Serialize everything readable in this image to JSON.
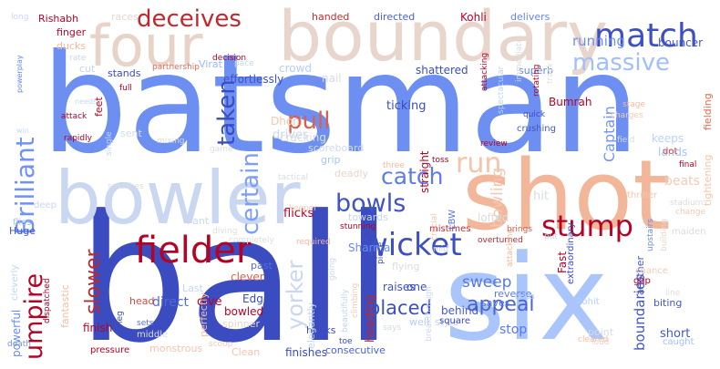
{
  "words": [
    {
      "text": "batsman",
      "color": "#6c8ff1"
    },
    {
      "text": "ball",
      "color": "#3b4cc0"
    },
    {
      "text": "six",
      "color": "#a9c5fc"
    },
    {
      "text": "shot",
      "color": "#f2b79a"
    },
    {
      "text": "bowler",
      "color": "#c9d7f0"
    },
    {
      "text": "boundary",
      "color": "#e8d6cc"
    },
    {
      "text": "four",
      "color": "#e7d3c8"
    },
    {
      "text": "fielder",
      "color": "#b40426"
    },
    {
      "text": "match",
      "color": "#3d50c3"
    },
    {
      "text": "wicket",
      "color": "#3d50c3"
    },
    {
      "text": "stump",
      "color": "#b40426"
    },
    {
      "text": "umpire",
      "color": "#b40426"
    },
    {
      "text": "Brilliant",
      "color": "#6f92f3"
    },
    {
      "text": "deceives",
      "color": "#c0282f"
    },
    {
      "text": "massive",
      "color": "#9fbfff"
    },
    {
      "text": "catch",
      "color": "#5d7ce6"
    },
    {
      "text": "run",
      "color": "#f5c4ac"
    },
    {
      "text": "bowls",
      "color": "#3f53c6"
    },
    {
      "text": "pull",
      "color": "#dd5f4b"
    },
    {
      "text": "certain",
      "color": "#7b9ff9"
    },
    {
      "text": "taken",
      "color": "#3b4cc0"
    },
    {
      "text": "yorker",
      "color": "#c9d7f0"
    },
    {
      "text": "slower",
      "color": "#c0282f"
    },
    {
      "text": "appeal",
      "color": "#4a63d3"
    },
    {
      "text": "placed",
      "color": "#3d50c3"
    },
    {
      "text": "running",
      "color": "#6e90f2"
    },
    {
      "text": "Captain",
      "color": "#7396f5"
    },
    {
      "text": "bouncer",
      "color": "#4358cb"
    },
    {
      "text": "stop",
      "color": "#5a78e4"
    },
    {
      "text": "bowling",
      "color": "#f4c6af"
    },
    {
      "text": "sweep",
      "color": "#5977e3"
    },
    {
      "text": "direct",
      "color": "#4f69d9"
    },
    {
      "text": "finish",
      "color": "#b40426"
    },
    {
      "text": "short",
      "color": "#4358cb"
    },
    {
      "text": "dive",
      "color": "#b40426"
    },
    {
      "text": "flicks",
      "color": "#b40426"
    },
    {
      "text": "hit",
      "color": "#d6dce4"
    },
    {
      "text": "beats",
      "color": "#f2cbb7"
    },
    {
      "text": "ticking",
      "color": "#3b4cc0"
    },
    {
      "text": "Bumrah",
      "color": "#b40426"
    },
    {
      "text": "keeps",
      "color": "#bcd2f7"
    },
    {
      "text": "lands",
      "color": "#a3c2fe"
    },
    {
      "text": "lofted",
      "color": "#dadce0"
    },
    {
      "text": "Fast",
      "color": "#b40426"
    },
    {
      "text": "drives",
      "color": "#c7d7f0"
    },
    {
      "text": "Dhoni",
      "color": "#f3c7b1"
    },
    {
      "text": "cracking",
      "color": "#dbdcde"
    },
    {
      "text": "scoreboard",
      "color": "#cfdaea"
    },
    {
      "text": "grip",
      "color": "#a5c3fe"
    },
    {
      "text": "deadly",
      "color": "#e9d5cb"
    },
    {
      "text": "sent",
      "color": "#d6dce4"
    },
    {
      "text": "head",
      "color": "#d24b40"
    },
    {
      "text": "effortlessly",
      "color": "#3e51c5"
    },
    {
      "text": "shattered",
      "color": "#3b4cc0"
    },
    {
      "text": "superb",
      "color": "#6384eb"
    },
    {
      "text": "crowd",
      "color": "#b3cdfb"
    },
    {
      "text": "nail",
      "color": "#d4dbe6"
    },
    {
      "text": "stands",
      "color": "#3b4cc0"
    },
    {
      "text": "cut",
      "color": "#c3d5f4"
    },
    {
      "text": "ducks",
      "color": "#f7b89c"
    },
    {
      "text": "finger",
      "color": "#b40426"
    },
    {
      "text": "Virat",
      "color": "#9abbff"
    },
    {
      "text": "Kohli",
      "color": "#b40426"
    },
    {
      "text": "directed",
      "color": "#4a63d3"
    },
    {
      "text": "delivers",
      "color": "#6687ed"
    },
    {
      "text": "handed",
      "color": "#c32e31"
    },
    {
      "text": "races",
      "color": "#e7d7ce"
    },
    {
      "text": "Rishabh",
      "color": "#b40426"
    },
    {
      "text": "long",
      "color": "#c7d7f0"
    },
    {
      "text": "towards",
      "color": "#c6d6f1"
    },
    {
      "text": "Sharma",
      "color": "#6a8bef"
    },
    {
      "text": "flying",
      "color": "#dcdddd"
    },
    {
      "text": "raises",
      "color": "#3e51c5"
    },
    {
      "text": "Rohit",
      "color": "#b3cdfb"
    },
    {
      "text": "reverse",
      "color": "#5b7ae5"
    },
    {
      "text": "saves",
      "color": "#5a78e4"
    },
    {
      "text": "biting",
      "color": "#4358cb"
    },
    {
      "text": "behind",
      "color": "#4358cb"
    },
    {
      "text": "consecutive",
      "color": "#4b64d5"
    },
    {
      "text": "finishes",
      "color": "#3b4cc0"
    },
    {
      "text": "well",
      "color": "#b3cdfb"
    },
    {
      "text": "style",
      "color": "#bfd3f6"
    },
    {
      "text": "hooks",
      "color": "#3b4cc0"
    },
    {
      "text": "spinner",
      "color": "#e7d7ce"
    },
    {
      "text": "bowled",
      "color": "#b40426"
    },
    {
      "text": "Edge",
      "color": "#3b4cc0"
    },
    {
      "text": "clever",
      "color": "#dd5f4b"
    },
    {
      "text": "past",
      "color": "#5470de"
    },
    {
      "text": "Last",
      "color": "#c5d6f2"
    },
    {
      "text": "perfectly",
      "color": "#f6bfa6"
    },
    {
      "text": "monstrous",
      "color": "#f5c4ac"
    },
    {
      "text": "Clean",
      "color": "#f4c5ad"
    },
    {
      "text": "fantastic",
      "color": "#f6bda2"
    },
    {
      "text": "powerful",
      "color": "#6a8bef"
    },
    {
      "text": "Huge",
      "color": "#4358cb"
    },
    {
      "text": "Pant",
      "color": "#cad8ef"
    },
    {
      "text": "heading",
      "color": "#c0282f"
    },
    {
      "text": "one",
      "color": "#3e51c5"
    },
    {
      "text": "elegantly",
      "color": "#c0d4f5"
    },
    {
      "text": "straight",
      "color": "#b40426"
    },
    {
      "text": "boundaries",
      "color": "#4358cb"
    },
    {
      "text": "another",
      "color": "#4358cb"
    },
    {
      "text": "tightening",
      "color": "#f4c5ad"
    },
    {
      "text": "fielding",
      "color": "#e36c55"
    },
    {
      "text": "stadium",
      "color": "#e0dbd8"
    },
    {
      "text": "dot",
      "color": "#d24b40"
    },
    {
      "text": "final",
      "color": "#b40426"
    },
    {
      "text": "thriller",
      "color": "#f4c5ad"
    },
    {
      "text": "change",
      "color": "#f2cbb7"
    },
    {
      "text": "maiden",
      "color": "#d9dce1"
    },
    {
      "text": "gap",
      "color": "#b40426"
    },
    {
      "text": "chance",
      "color": "#f2cbb7"
    },
    {
      "text": "line",
      "color": "#dcdddd"
    },
    {
      "text": "caught",
      "color": "#a1c0ff"
    },
    {
      "text": "point",
      "color": "#d6dce4"
    },
    {
      "text": "square",
      "color": "#3b4cc0"
    },
    {
      "text": "finds",
      "color": "#b3cdfb"
    },
    {
      "text": "loud",
      "color": "#e7d7ce"
    },
    {
      "text": "cleared",
      "color": "#f6bfa6"
    },
    {
      "text": "says",
      "color": "#d6dce4"
    },
    {
      "text": "toe",
      "color": "#3b4cc0"
    },
    {
      "text": "scoop",
      "color": "#f2cbb7"
    },
    {
      "text": "pressure",
      "color": "#b40426"
    },
    {
      "text": "middle",
      "color": "#dcdddd"
    },
    {
      "text": "sets",
      "color": "#5470de"
    },
    {
      "text": "leg",
      "color": "#3b4cc0"
    },
    {
      "text": "death",
      "color": "#6f92f3"
    },
    {
      "text": "cleverly",
      "color": "#c0d4f5"
    },
    {
      "text": "dispatched",
      "color": "#b40426"
    },
    {
      "text": "flies",
      "color": "#a5c3fe"
    },
    {
      "text": "deep",
      "color": "#c7d7f0"
    },
    {
      "text": "smashes",
      "color": "#dcdddd"
    },
    {
      "text": "diving",
      "color": "#dcdddd"
    },
    {
      "text": "completely",
      "color": "#dcdddd"
    },
    {
      "text": "required",
      "color": "#f7b89c"
    },
    {
      "text": "tactical",
      "color": "#d9dce1"
    },
    {
      "text": "three",
      "color": "#f7b89c"
    },
    {
      "text": "toss",
      "color": "#b40426"
    },
    {
      "text": "stunning",
      "color": "#b40426"
    },
    {
      "text": "mistimes",
      "color": "#c0282f"
    },
    {
      "text": "overturned",
      "color": "#c0282f"
    },
    {
      "text": "mid",
      "color": "#c7d7f0"
    },
    {
      "text": "piece",
      "color": "#3b4cc0"
    },
    {
      "text": "going",
      "color": "#cad8ef"
    },
    {
      "text": "beautifully",
      "color": "#c0d4f5"
    },
    {
      "text": "climbing",
      "color": "#f2cbb7"
    },
    {
      "text": "breakthrough",
      "color": "#cad8ef"
    },
    {
      "text": "crucial",
      "color": "#f4c5ad"
    },
    {
      "text": "attacking",
      "color": "#f7b89c"
    },
    {
      "text": "brings",
      "color": "#dd5f4b"
    },
    {
      "text": "extraordinary",
      "color": "#3b4cc0"
    },
    {
      "text": "put",
      "color": "#c7d7f0"
    },
    {
      "text": "upstairs",
      "color": "#6a8bef"
    },
    {
      "text": "building",
      "color": "#e7d7ce"
    },
    {
      "text": "LBW",
      "color": "#5a78e4"
    },
    {
      "text": "crushing",
      "color": "#4358cb"
    },
    {
      "text": "quick",
      "color": "#3b4cc0"
    },
    {
      "text": "review",
      "color": "#b40426"
    },
    {
      "text": "field",
      "color": "#d6dce4"
    },
    {
      "text": "charges",
      "color": "#f2cbb7"
    },
    {
      "text": "stage",
      "color": "#f7b89c"
    },
    {
      "text": "track",
      "color": "#dcdddd"
    },
    {
      "text": "rotating",
      "color": "#b40426"
    },
    {
      "text": "spectacular",
      "color": "#c0d4f5"
    },
    {
      "text": "attacking",
      "color": "#b40426"
    },
    {
      "text": "immediate",
      "color": "#dcdddd"
    },
    {
      "text": "decision",
      "color": "#b40426"
    },
    {
      "text": "pace",
      "color": "#c7d7f0"
    },
    {
      "text": "partnership",
      "color": "#e36c55"
    },
    {
      "text": "keeper",
      "color": "#f2cbb7"
    },
    {
      "text": "mixing",
      "color": "#dcdddd"
    },
    {
      "text": "game",
      "color": "#dcdddd"
    },
    {
      "text": "single",
      "color": "#c0d4f5"
    },
    {
      "text": "feet",
      "color": "#b40426"
    },
    {
      "text": "full",
      "color": "#b40426"
    },
    {
      "text": "rapidly",
      "color": "#b40426"
    },
    {
      "text": "attack",
      "color": "#b40426"
    },
    {
      "text": "needs",
      "color": "#c7d7f0"
    },
    {
      "text": "rate",
      "color": "#c7d7f0"
    },
    {
      "text": "powerplay",
      "color": "#6384eb"
    },
    {
      "text": "win",
      "color": "#c7d7f0"
    }
  ]
}
